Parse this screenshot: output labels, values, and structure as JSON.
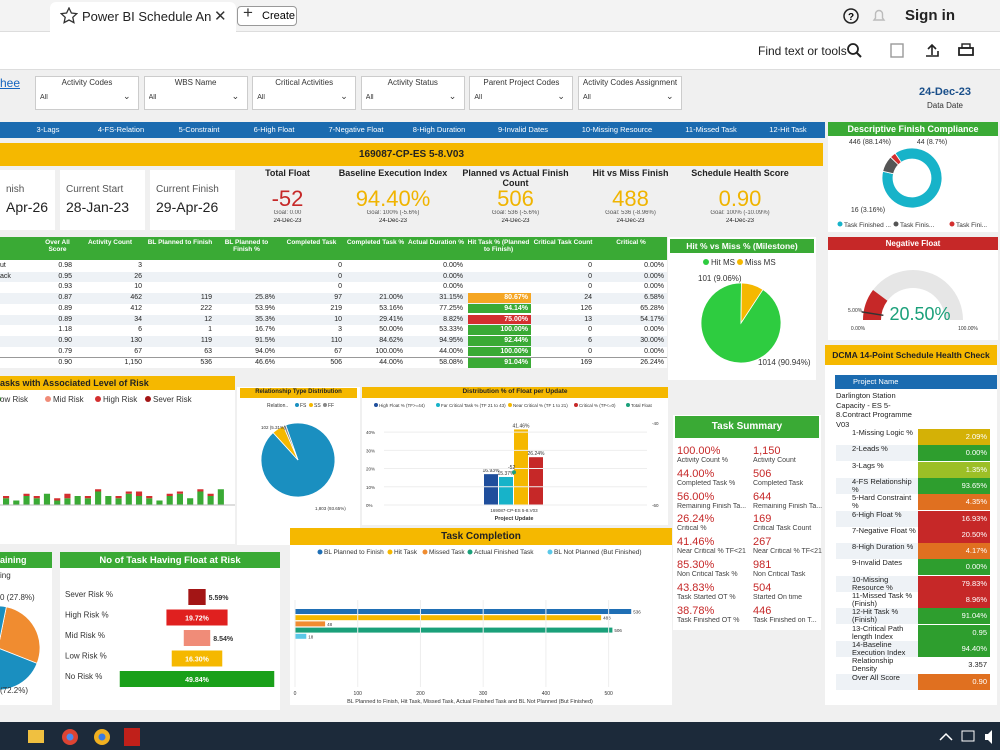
{
  "browser": {
    "tab_title": "Power BI Schedule Anal...",
    "new_tab": "Create",
    "sign_in": "Sign in",
    "find": "Find text or tools"
  },
  "link": "heet",
  "slicers": [
    {
      "label": "Activity Codes",
      "value": "All"
    },
    {
      "label": "WBS Name",
      "value": "All"
    },
    {
      "label": "Critical Activities",
      "value": "All"
    },
    {
      "label": "Activity Status",
      "value": "All"
    },
    {
      "label": "Parent Project Codes",
      "value": "All"
    },
    {
      "label": "Activity Codes Assignment",
      "value": "All"
    }
  ],
  "data_date": {
    "value": "24-Dec-23",
    "label": "Data Date"
  },
  "tabs": [
    "3-Lags",
    "4-FS-Relation",
    "5-Constraint",
    "6-High Float",
    "7-Negative Float",
    "8-High Duration",
    "9-Invalid Dates",
    "10-Missing Resource",
    "11-Missed Task",
    "12-Hit Task"
  ],
  "banner": "169087-CP-ES 5-8.V03",
  "date_cards": [
    {
      "label": "nish",
      "value": "Apr-26"
    },
    {
      "label": "Current Start",
      "value": "28-Jan-23"
    },
    {
      "label": "Current Finish",
      "value": "29-Apr-26"
    }
  ],
  "kpis": [
    {
      "title": "Total Float",
      "value": "-52",
      "goal": "Goal: 0.00",
      "date": "24-Dec-23",
      "color": "#c62828"
    },
    {
      "title": "Baseline Execution Index",
      "value": "94.40%",
      "goal": "Goal: 100% (-5.6%)",
      "date": "24-Dec-23",
      "color": "#f0b400"
    },
    {
      "title": "Planned vs Actual Finish Count",
      "value": "506",
      "goal": "Goal: 536 (-5.6%)",
      "date": "24-Dec-23",
      "color": "#f0b400"
    },
    {
      "title": "Hit vs Miss Finish",
      "value": "488",
      "goal": "Goal: 536 (-8.96%)",
      "date": "24-Dec-23",
      "color": "#f0b400"
    },
    {
      "title": "Schedule Health Score",
      "value": "0.90",
      "goal": "Goal: 100% (-10.09%)",
      "date": "24-Dec-23",
      "color": "#f0b400"
    }
  ],
  "table": {
    "headers": [
      null,
      "Over All Score",
      "Activity Count",
      "BL Planned to Finish",
      "BL Planned to Finish %",
      "Completed Task",
      "Completed Task %",
      "Actual Duration %",
      "Hit Task % (Planned to Finish)",
      "Critical Task Count",
      "Critical %"
    ],
    "rows": [
      [
        "ut",
        "0.98",
        "3",
        null,
        null,
        "0",
        null,
        "0.00%",
        null,
        "0",
        "0.00%"
      ],
      [
        "ack",
        "0.95",
        "26",
        null,
        null,
        "0",
        null,
        "0.00%",
        null,
        "0",
        "0.00%"
      ],
      [
        null,
        "0.93",
        "10",
        null,
        null,
        "0",
        null,
        "0.00%",
        null,
        "0",
        "0.00%"
      ],
      [
        null,
        "0.87",
        "462",
        "119",
        "25.8%",
        "97",
        "21.00%",
        "31.15%",
        "80.67%",
        "24",
        "6.58%"
      ],
      [
        null,
        "0.89",
        "412",
        "222",
        "53.9%",
        "219",
        "53.16%",
        "77.25%",
        "94.14%",
        "126",
        "65.28%"
      ],
      [
        null,
        "0.89",
        "34",
        "12",
        "35.3%",
        "10",
        "29.41%",
        "8.82%",
        "75.00%",
        "13",
        "54.17%"
      ],
      [
        null,
        "1.18",
        "6",
        "1",
        "16.7%",
        "3",
        "50.00%",
        "53.33%",
        "100.00%",
        "0",
        "0.00%"
      ],
      [
        null,
        "0.90",
        "130",
        "119",
        "91.5%",
        "110",
        "84.62%",
        "94.95%",
        "92.44%",
        "6",
        "30.00%"
      ],
      [
        null,
        "0.79",
        "67",
        "63",
        "94.0%",
        "67",
        "100.00%",
        "44.00%",
        "100.00%",
        "0",
        "0.00%"
      ]
    ],
    "total": [
      null,
      "0.90",
      "1,150",
      "536",
      "46.6%",
      "506",
      "44.00%",
      "58.08%",
      "91.04%",
      "169",
      "26.24%"
    ],
    "hit_colors": [
      null,
      null,
      null,
      "#f5a623",
      "#3aaa35",
      "#d32f2f",
      "#3aaa35",
      "#3aaa35",
      "#3aaa35"
    ],
    "total_hit_color": "#3aaa35"
  },
  "compliance": {
    "title": "Descriptive Finish Compliance",
    "values": [
      446,
      44,
      16
    ],
    "value_labels": [
      "446 (88.14%)",
      "44 (8.7%)",
      "16 (3.16%)"
    ],
    "legend": [
      "Task Finished ...",
      "Task Finis...",
      "Task Fini..."
    ],
    "colors": [
      "#17b3c9",
      "#555555",
      "#d32f2f"
    ]
  },
  "negative_float": {
    "title": "Negative Float",
    "value": 20.5,
    "value_label": "20.50%",
    "min": 0,
    "min_label": "0.00%",
    "max": 100,
    "max_label": "100.00%",
    "target": 5,
    "target_label": "5.00%",
    "color": "#c62828"
  },
  "hit_miss": {
    "title": "Hit % vs Miss % (Milestone)",
    "legend": [
      "Hit MS",
      "Miss MS"
    ],
    "values": [
      1014,
      101
    ],
    "value_labels": [
      "1014 (90.94%)",
      "101 (9.06%)"
    ],
    "colors": [
      "#2ecc40",
      "#f5b800"
    ]
  },
  "dcma": {
    "title": "DCMA 14-Point Schedule Health Check",
    "header": "Project Name",
    "project": "Darlington Station Capacity - ES 5-8.Contract Programme V03",
    "rows": [
      {
        "label": "1-Missing Logic %",
        "value": "2.09%",
        "color": "#d4b106"
      },
      {
        "label": "2-Leads %",
        "value": "0.00%",
        "color": "#2e9e2e"
      },
      {
        "label": "3-Lags %",
        "value": "1.35%",
        "color": "#9cbf26"
      },
      {
        "label": "4-FS Relationship %",
        "value": "93.65%",
        "color": "#2e9e2e"
      },
      {
        "label": "5-Hard Constraint %",
        "value": "4.35%",
        "color": "#e07020"
      },
      {
        "label": "6-High Float %",
        "value": "16.93%",
        "color": "#c62828"
      },
      {
        "label": "7-Negative Float %",
        "value": "20.50%",
        "color": "#c62828"
      },
      {
        "label": "8-High Duration %",
        "value": "4.17%",
        "color": "#e07020"
      },
      {
        "label": "9-Invalid Dates",
        "value": "0.00%",
        "color": "#2e9e2e"
      },
      {
        "label": "10-Missing Resource %",
        "value": "79.83%",
        "color": "#c62828"
      },
      {
        "label": "11-Missed Task % (Finish)",
        "value": "8.96%",
        "color": "#c62828"
      },
      {
        "label": "12-Hit Task % (Finish)",
        "value": "91.04%",
        "color": "#2e9e2e"
      },
      {
        "label": "13-Critical Path length Index",
        "value": "0.95",
        "color": "#2e9e2e"
      },
      {
        "label": "14-Baseline Execution Index",
        "value": "94.40%",
        "color": "#2e9e2e"
      },
      {
        "label": "Relationship Density",
        "value": "3.357",
        "color": "#ffffff"
      },
      {
        "label": "Over All Score",
        "value": "0.90",
        "color": "#e07020"
      }
    ]
  },
  "risk_chart": {
    "title": "asks with Associated Level of Risk",
    "legend": [
      {
        "name": "ow Risk",
        "color": "#3aaa35"
      },
      {
        "name": "Mid Risk",
        "color": "#f08c78"
      },
      {
        "name": "High Risk",
        "color": "#d32f2f"
      },
      {
        "name": "Sever Risk",
        "color": "#a31515"
      }
    ],
    "ylim": [
      0,
      40
    ],
    "series": [
      {
        "name": "ow Risk",
        "color": "#3aaa35",
        "values": [
          3,
          2,
          4,
          3,
          5,
          2,
          3,
          4,
          3,
          6,
          4,
          3,
          5,
          4,
          3,
          2,
          4,
          5,
          3,
          6,
          4,
          7
        ]
      },
      {
        "name": "High Risk",
        "color": "#d32f2f",
        "values": [
          1,
          0,
          1,
          1,
          0,
          1,
          2,
          0,
          1,
          1,
          0,
          1,
          1,
          2,
          1,
          0,
          1,
          1,
          0,
          1,
          1,
          0
        ]
      }
    ]
  },
  "relationship": {
    "title": "Relationship Type Distribution",
    "legend_title": "Relation..",
    "names": [
      "FS",
      "SS",
      "FF"
    ],
    "values": [
      1803,
      102,
      20
    ],
    "value_labels": [
      "1,803 (93.65%)",
      "102 (5.31%)",
      null
    ],
    "colors": [
      "#1a8fc0",
      "#f5b800",
      "#888888"
    ]
  },
  "float_dist": {
    "title": "Distribution % of Float per Update",
    "category": "169087-CP-ES 5-8.V03",
    "xlabel": "Project Update",
    "series": [
      {
        "name": "High Float % (TF>=44)",
        "color": "#1f4e9c",
        "value": 16.93,
        "label": "16.93%"
      },
      {
        "name": "Far Critical Task % (TF 21 to 43)",
        "color": "#17b3c9",
        "value": 15.37,
        "label": "15.37%"
      },
      {
        "name": "Near Critical % (TF 1 to 21)",
        "color": "#f5b800",
        "value": 41.46,
        "label": "41.46%"
      },
      {
        "name": "Critical % (TF<=0)",
        "color": "#c62828",
        "value": 26.24,
        "label": "26.24%"
      }
    ],
    "line": {
      "name": "Total Float",
      "color": "#1aa07a",
      "value": -52,
      "label": "-52"
    },
    "ylim": [
      0,
      45
    ],
    "yticks": [
      {
        "value": 0,
        "label": "0%"
      },
      {
        "value": 10,
        "label": "10%"
      },
      {
        "value": 20,
        "label": "20%"
      },
      {
        "value": 30,
        "label": "30%"
      },
      {
        "value": 40,
        "label": "40%"
      }
    ],
    "y2lim": [
      -60,
      -40
    ],
    "y2ticks": [
      -60,
      -40
    ]
  },
  "task_summary": {
    "title": "Task Summary",
    "items": [
      {
        "left_value": "100.00%",
        "left_label": "Activity Count %",
        "right_value": "1,150",
        "right_label": "Activity Count"
      },
      {
        "left_value": "44.00%",
        "left_label": "Completed Task %",
        "right_value": "506",
        "right_label": "Completed Task"
      },
      {
        "left_value": "56.00%",
        "left_label": "Remaining Finish Ta...",
        "right_value": "644",
        "right_label": "Remaining Finish Ta..."
      },
      {
        "left_value": "26.24%",
        "left_label": "Critical %",
        "right_value": "169",
        "right_label": "Critical Task Count"
      },
      {
        "left_value": "41.46%",
        "left_label": "Near Critical % TF<21",
        "right_value": "267",
        "right_label": "Near Critical % TF<21"
      },
      {
        "left_value": "85.30%",
        "left_label": "Non Critical Task %",
        "right_value": "981",
        "right_label": "Non Critical Task"
      },
      {
        "left_value": "43.83%",
        "left_label": "Task Started OT %",
        "right_value": "504",
        "right_label": "Started On time"
      },
      {
        "left_value": "38.78%",
        "left_label": "Task Finished OT %",
        "right_value": "446",
        "right_label": "Task Finished on T..."
      }
    ]
  },
  "task_completion": {
    "title": "Task Completion",
    "series": [
      {
        "name": "BL Planned to Finish",
        "color": "#1f6fb5",
        "value": 536
      },
      {
        "name": "Hit Task",
        "color": "#f5b800",
        "value": 488
      },
      {
        "name": "Missed Task",
        "color": "#f08c30",
        "value": 48
      },
      {
        "name": "Actual Finished Task",
        "color": "#1aa07a",
        "value": 506
      },
      {
        "name": "BL Not Planned (But Finished)",
        "color": "#5bc8e8",
        "value": 18
      }
    ],
    "xlim": [
      0,
      550
    ],
    "xticks": [
      0,
      100,
      200,
      300,
      400,
      500
    ],
    "xlabel": "BL Planned to Finish, Hit Task, Missed Task, Actual Finished Task and BL Not Planned (But Finished)"
  },
  "remaining": {
    "title": "aining",
    "legend": "ing",
    "values": [
      27.8,
      72.2
    ],
    "value_labels": [
      "0 (27.8%)",
      "(72.2%)"
    ],
    "colors": [
      "#f08c30",
      "#1a8fc0"
    ]
  },
  "float_risk": {
    "title": "No of Task Having Float at Risk",
    "rows": [
      {
        "name": "Sever Risk %",
        "value": 5.59,
        "label": "5.59%",
        "color": "#a31515"
      },
      {
        "name": "High Risk %",
        "value": 19.72,
        "label": "19.72%",
        "color": "#e0201f"
      },
      {
        "name": "Mid Risk %",
        "value": 8.54,
        "label": "8.54%",
        "color": "#f08c78"
      },
      {
        "name": "Low Risk %",
        "value": 16.3,
        "label": "16.30%",
        "color": "#f5b800"
      },
      {
        "name": "No Risk %",
        "value": 49.84,
        "label": "49.84%",
        "color": "#1aa01a"
      }
    ]
  }
}
